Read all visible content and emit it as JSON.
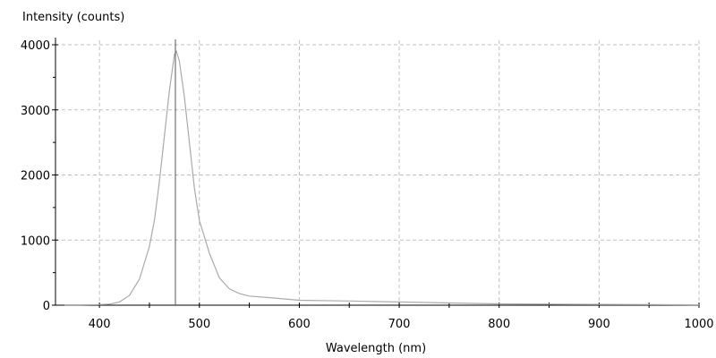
{
  "chart_data": {
    "type": "line",
    "title": "",
    "xlabel": "Wavelength (nm)",
    "ylabel": "Intensity (counts)",
    "xlim": [
      356,
      1000
    ],
    "ylim": [
      0,
      4000
    ],
    "x_ticks": [
      400,
      500,
      600,
      700,
      800,
      900,
      1000
    ],
    "y_ticks": [
      0,
      1000,
      2000,
      3000,
      4000
    ],
    "grid": true,
    "cursor_x": 476,
    "colors": {
      "series": "#aaaaaa",
      "grid": "#c0c0c0",
      "axis": "#000000",
      "cursor": "#555555"
    },
    "series": [
      {
        "x": [
          365,
          380,
          400,
          410,
          420,
          430,
          440,
          450,
          455,
          460,
          465,
          470,
          475,
          477,
          480,
          485,
          490,
          495,
          500,
          505,
          510,
          520,
          530,
          540,
          550,
          575,
          600,
          650,
          700,
          750,
          800,
          850,
          900,
          950,
          1000
        ],
        "y": [
          5,
          5,
          10,
          15,
          50,
          150,
          400,
          900,
          1300,
          1900,
          2600,
          3300,
          3850,
          3900,
          3750,
          3200,
          2500,
          1800,
          1300,
          1050,
          800,
          420,
          250,
          180,
          140,
          110,
          75,
          65,
          50,
          35,
          20,
          15,
          12,
          10,
          5
        ]
      }
    ]
  }
}
